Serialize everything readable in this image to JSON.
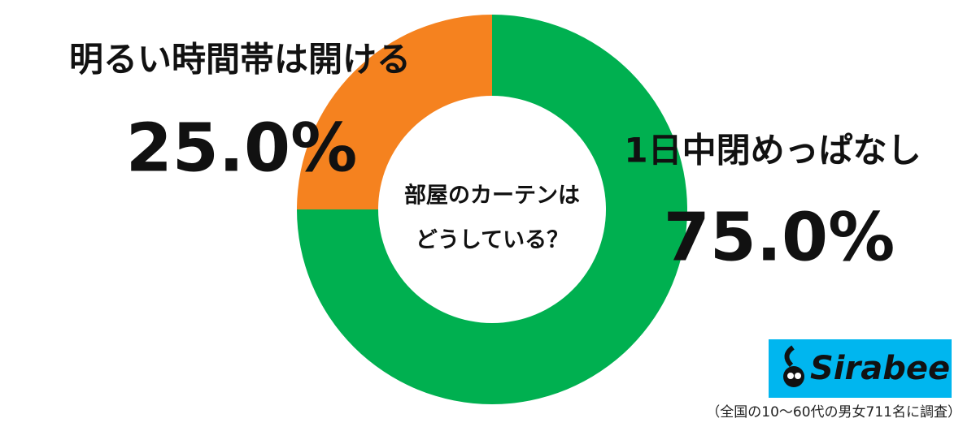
{
  "chart_data": {
    "type": "pie",
    "center_text": [
      "部屋のカーテンは",
      "どうしている？"
    ],
    "categories": [
      "1日中閉めっぱなし",
      "明るい時間帯は開ける"
    ],
    "values": [
      75,
      25
    ],
    "value_labels": [
      "75.0%",
      "25.0%"
    ],
    "colors": [
      "#00b050",
      "#f5821f"
    ],
    "logo": "Sirabee",
    "note": "（全国の10〜60代の男女711名に調査）"
  }
}
